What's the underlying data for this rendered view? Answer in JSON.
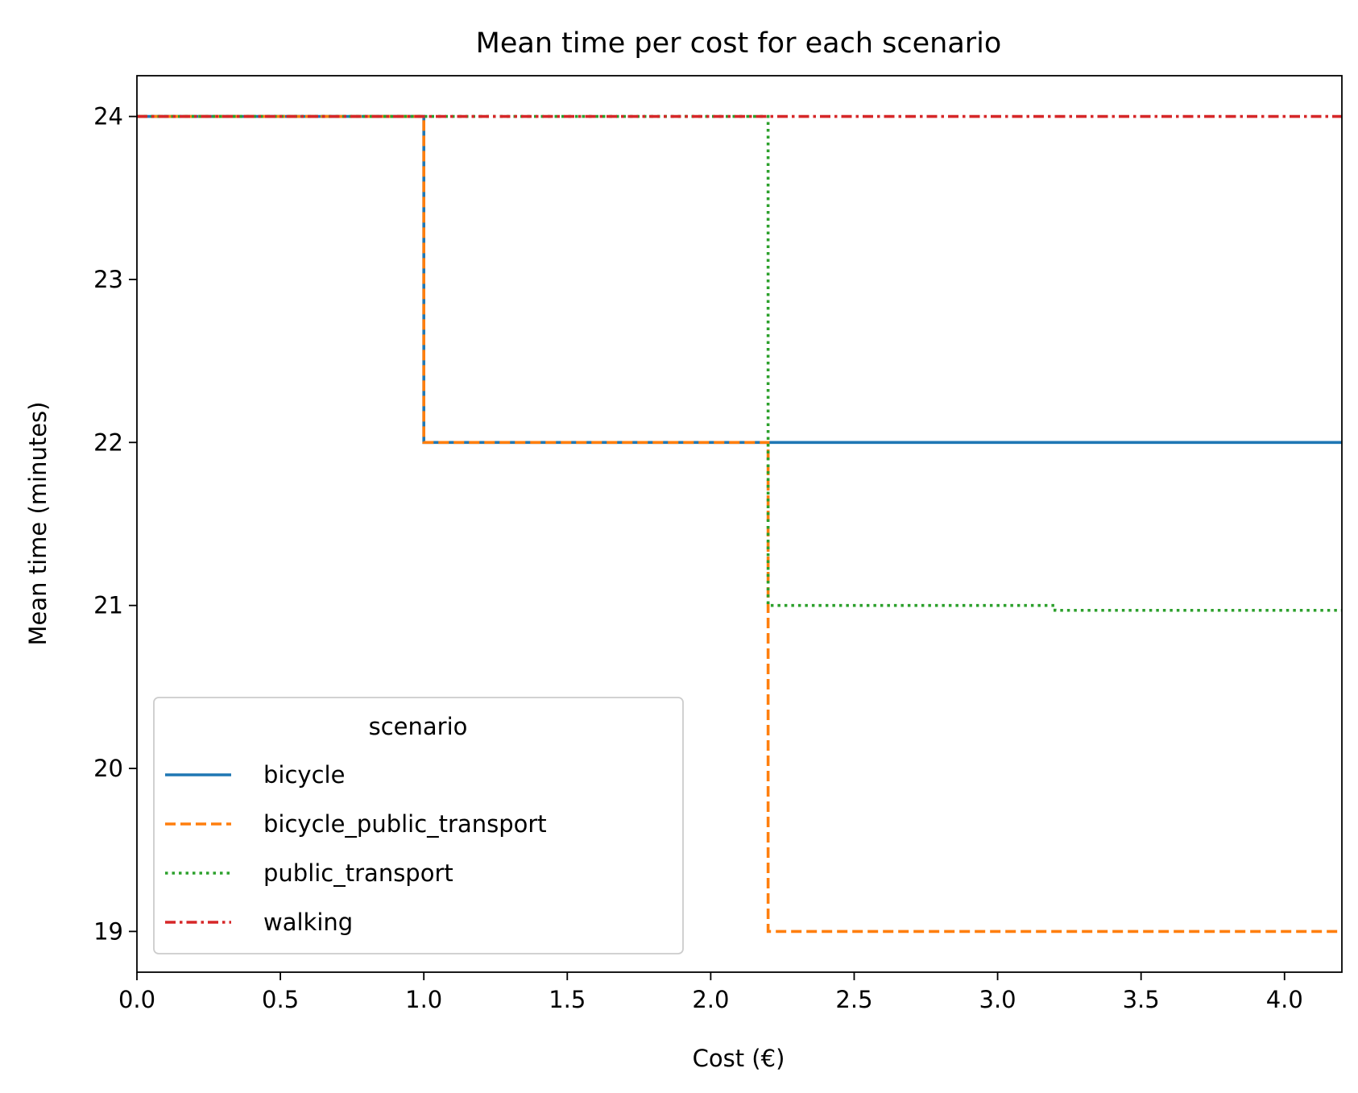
{
  "chart_data": {
    "type": "line",
    "drawstyle": "steps-post",
    "title": "Mean time per cost for each scenario",
    "xlabel": "Cost (€)",
    "ylabel": "Mean time (minutes)",
    "xlim": [
      0.0,
      4.2
    ],
    "ylim": [
      18.75,
      24.25
    ],
    "xticks": [
      0.0,
      0.5,
      1.0,
      1.5,
      2.0,
      2.5,
      3.0,
      3.5,
      4.0
    ],
    "xtick_labels": [
      "0.0",
      "0.5",
      "1.0",
      "1.5",
      "2.0",
      "2.5",
      "3.0",
      "3.5",
      "4.0"
    ],
    "yticks": [
      19,
      20,
      21,
      22,
      23,
      24
    ],
    "ytick_labels": [
      "19",
      "20",
      "21",
      "22",
      "23",
      "24"
    ],
    "grid": false,
    "legend": {
      "title": "scenario",
      "placement": "lower-left"
    },
    "series": [
      {
        "name": "bicycle",
        "color": "#1f77b4",
        "dash": "solid",
        "x": [
          0.0,
          1.0,
          4.2
        ],
        "y": [
          24,
          22,
          22
        ]
      },
      {
        "name": "bicycle_public_transport",
        "color": "#ff7f0e",
        "dash": "dashed",
        "x": [
          0.0,
          1.0,
          2.2,
          4.2
        ],
        "y": [
          24,
          22,
          19,
          19
        ]
      },
      {
        "name": "public_transport",
        "color": "#2ca02c",
        "dash": "dotted",
        "x": [
          0.0,
          2.2,
          3.2,
          4.2
        ],
        "y": [
          24,
          21,
          20.97,
          20.97
        ]
      },
      {
        "name": "walking",
        "color": "#d62728",
        "dash": "dashdot",
        "x": [
          0.0,
          4.2
        ],
        "y": [
          24,
          24
        ]
      }
    ]
  }
}
